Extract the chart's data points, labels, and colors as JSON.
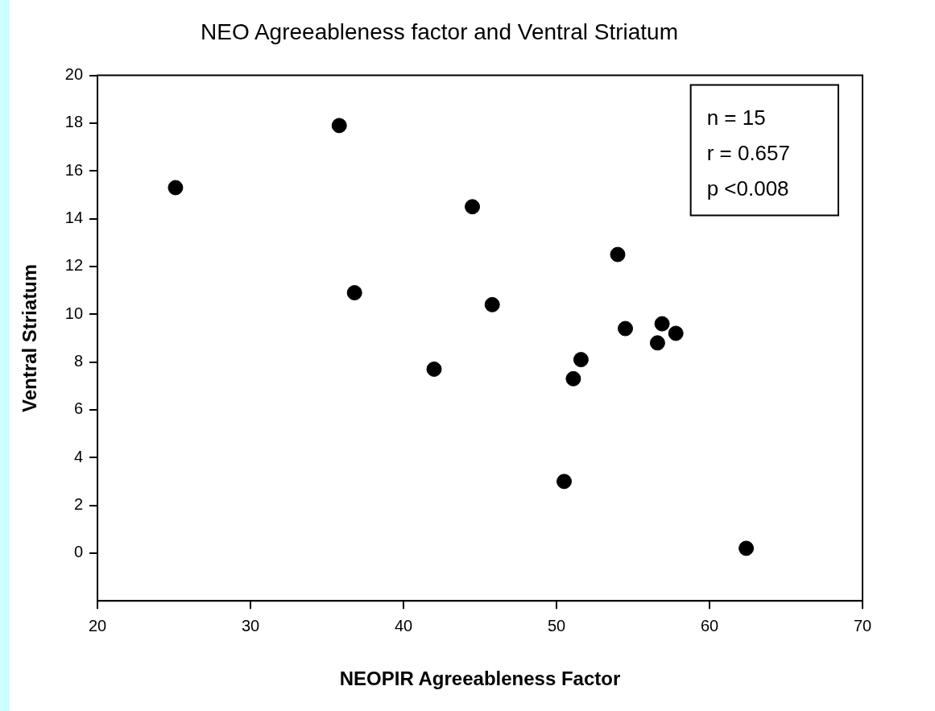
{
  "chart_data": {
    "type": "scatter",
    "title": "NEO Agreeableness factor and Ventral Striatum",
    "xlabel": "NEOPIR Agreeableness Factor",
    "ylabel": "Ventral Striatum",
    "x": [
      25.1,
      35.8,
      36.8,
      42,
      44.5,
      45.8,
      50.5,
      51.1,
      51.6,
      54,
      54.5,
      56.6,
      56.9,
      57.8,
      62.4
    ],
    "values": [
      15.3,
      17.9,
      10.9,
      7.7,
      14.5,
      10.4,
      3.0,
      7.3,
      8.1,
      12.5,
      9.4,
      8.8,
      9.6,
      9.2,
      0.2
    ],
    "color": "#000000",
    "marker": "circle",
    "xlim": [
      20,
      70
    ],
    "xticks": [
      20,
      30,
      40,
      50,
      60,
      70
    ],
    "ylim": [
      -2,
      20
    ],
    "yticks": [
      0,
      2,
      4,
      6,
      8,
      10,
      12,
      14,
      16,
      18,
      20
    ],
    "grid": false,
    "legend": false,
    "annotations": [
      "n = 15",
      "r = 0.657",
      "p <0.008"
    ]
  }
}
